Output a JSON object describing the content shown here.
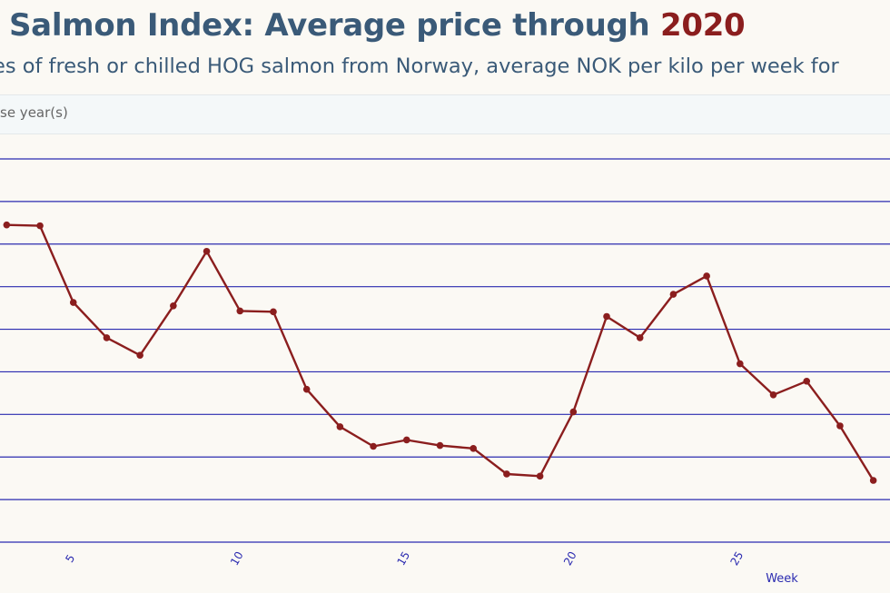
{
  "header": {
    "title_main": "Salmon Index: Average price through ",
    "title_year": "2020",
    "subtitle": "es of fresh or chilled HOG salmon from Norway, average NOK per kilo per week for"
  },
  "selector": {
    "label": "se year(s)"
  },
  "colors": {
    "line": "#8b1e1e",
    "grid": "#2b2bb0",
    "tick_text": "#2b2bb0",
    "title": "#3a5a78",
    "accent": "#8b1e1e"
  },
  "chart_data": {
    "type": "line",
    "xlabel": "Week",
    "ylabel": "",
    "xlim": [
      2.8,
      29.5
    ],
    "x_ticks": [
      "5",
      "10",
      "15",
      "20",
      "25"
    ],
    "ylim": [
      0,
      9
    ],
    "y_gridlines": 9,
    "grid": true,
    "series": [
      {
        "values": [
          [
            3,
            7.45
          ],
          [
            4,
            7.43
          ],
          [
            5,
            5.63
          ],
          [
            6,
            4.8
          ],
          [
            7,
            4.39
          ],
          [
            8,
            5.55
          ],
          [
            9,
            6.83
          ],
          [
            10,
            5.43
          ],
          [
            11,
            5.41
          ],
          [
            12,
            3.59
          ],
          [
            13,
            2.71
          ],
          [
            14,
            2.25
          ],
          [
            15,
            2.4
          ],
          [
            16,
            2.27
          ],
          [
            17,
            2.2
          ],
          [
            18,
            1.6
          ],
          [
            19,
            1.55
          ],
          [
            20,
            3.06
          ],
          [
            21,
            5.3
          ],
          [
            22,
            4.8
          ],
          [
            23,
            5.82
          ],
          [
            24,
            6.25
          ],
          [
            25,
            4.19
          ],
          [
            26,
            3.46
          ],
          [
            27,
            3.78
          ],
          [
            28,
            2.73
          ],
          [
            29,
            1.45
          ]
        ]
      }
    ]
  }
}
